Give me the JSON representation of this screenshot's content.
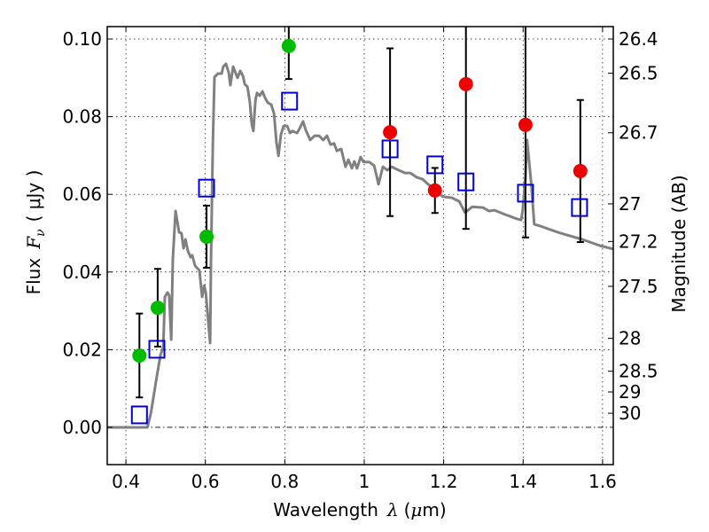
{
  "chart_data": {
    "type": "scatter",
    "title": "",
    "xlabel": "Wavelength",
    "xlabel_symbol": "λ",
    "xlabel_unit_open": "(",
    "xlabel_unit_mu": "μ",
    "xlabel_unit_rest": "m)",
    "ylabel": "Flux",
    "ylabel_symbol": "F",
    "ylabel_subscript": "ν",
    "ylabel_unit": "( μJy )",
    "ylabel_right": "Magnitude (AB)",
    "xlim": [
      0.353,
      1.627
    ],
    "ylim": [
      -0.0096,
      0.1032
    ],
    "grid": true,
    "legend": "none",
    "x_ticks": [
      {
        "value": 0.4,
        "label": "0.4"
      },
      {
        "value": 0.6,
        "label": "0.6"
      },
      {
        "value": 0.8,
        "label": "0.8"
      },
      {
        "value": 1.0,
        "label": "1"
      },
      {
        "value": 1.2,
        "label": "1.2"
      },
      {
        "value": 1.4,
        "label": "1.4"
      },
      {
        "value": 1.6,
        "label": "1.6"
      }
    ],
    "y_ticks": [
      {
        "value": 0.0,
        "label": "0.00"
      },
      {
        "value": 0.02,
        "label": "0.02"
      },
      {
        "value": 0.04,
        "label": "0.04"
      },
      {
        "value": 0.06,
        "label": "0.06"
      },
      {
        "value": 0.08,
        "label": "0.08"
      },
      {
        "value": 0.1,
        "label": "0.10"
      }
    ],
    "mag_ticks": [
      {
        "mag": 26.4,
        "label": "26.4"
      },
      {
        "mag": 26.5,
        "label": "26.5"
      },
      {
        "mag": 26.7,
        "label": "26.7"
      },
      {
        "mag": 27.0,
        "label": "27"
      },
      {
        "mag": 27.2,
        "label": "27.2"
      },
      {
        "mag": 27.5,
        "label": "27.5"
      },
      {
        "mag": 28.0,
        "label": "28"
      },
      {
        "mag": 28.5,
        "label": "28.5"
      },
      {
        "mag": 29.0,
        "label": "29"
      },
      {
        "mag": 30.0,
        "label": "30"
      }
    ],
    "mag_zero_point": 23.9,
    "colors": {
      "spectrum": "#808080",
      "optical_points": "#00bb00",
      "nir_points": "#ee0000",
      "model_squares": "#0000dd",
      "errorbars": "#000000"
    },
    "series": [
      {
        "name": "spectrum",
        "kind": "line",
        "points": [
          [
            0.353,
            0
          ],
          [
            0.454,
            0
          ],
          [
            0.463,
            0.0037
          ],
          [
            0.476,
            0.0119
          ],
          [
            0.487,
            0.0187
          ],
          [
            0.494,
            0.0205
          ],
          [
            0.498,
            0.0336
          ],
          [
            0.505,
            0.0347
          ],
          [
            0.509,
            0.034
          ],
          [
            0.514,
            0.0226
          ],
          [
            0.518,
            0.0432
          ],
          [
            0.525,
            0.0557
          ],
          [
            0.534,
            0.0502
          ],
          [
            0.54,
            0.05
          ],
          [
            0.545,
            0.0461
          ],
          [
            0.55,
            0.0484
          ],
          [
            0.556,
            0.0454
          ],
          [
            0.563,
            0.0438
          ],
          [
            0.567,
            0.0443
          ],
          [
            0.574,
            0.0416
          ],
          [
            0.585,
            0.0404
          ],
          [
            0.592,
            0.0336
          ],
          [
            0.597,
            0.0365
          ],
          [
            0.601,
            0.0347
          ],
          [
            0.612,
            0.0217
          ],
          [
            0.614,
            0.0416
          ],
          [
            0.619,
            0.0735
          ],
          [
            0.623,
            0.0902
          ],
          [
            0.632,
            0.0911
          ],
          [
            0.641,
            0.0911
          ],
          [
            0.645,
            0.0929
          ],
          [
            0.652,
            0.0936
          ],
          [
            0.659,
            0.0913
          ],
          [
            0.663,
            0.0881
          ],
          [
            0.67,
            0.0929
          ],
          [
            0.674,
            0.0918
          ],
          [
            0.681,
            0.09
          ],
          [
            0.688,
            0.0918
          ],
          [
            0.695,
            0.0904
          ],
          [
            0.699,
            0.0884
          ],
          [
            0.706,
            0.0877
          ],
          [
            0.712,
            0.0838
          ],
          [
            0.717,
            0.0781
          ],
          [
            0.721,
            0.0763
          ],
          [
            0.726,
            0.0842
          ],
          [
            0.73,
            0.0861
          ],
          [
            0.737,
            0.0854
          ],
          [
            0.744,
            0.0865
          ],
          [
            0.75,
            0.0849
          ],
          [
            0.757,
            0.0836
          ],
          [
            0.766,
            0.0831
          ],
          [
            0.773,
            0.0808
          ],
          [
            0.779,
            0.0735
          ],
          [
            0.784,
            0.0699
          ],
          [
            0.79,
            0.0753
          ],
          [
            0.797,
            0.0776
          ],
          [
            0.806,
            0.0776
          ],
          [
            0.813,
            0.0758
          ],
          [
            0.819,
            0.0763
          ],
          [
            0.831,
            0.0758
          ],
          [
            0.837,
            0.0769
          ],
          [
            0.846,
            0.0788
          ],
          [
            0.853,
            0.0765
          ],
          [
            0.864,
            0.074
          ],
          [
            0.875,
            0.0751
          ],
          [
            0.886,
            0.0751
          ],
          [
            0.897,
            0.074
          ],
          [
            0.906,
            0.0751
          ],
          [
            0.915,
            0.0728
          ],
          [
            0.924,
            0.0731
          ],
          [
            0.931,
            0.0712
          ],
          [
            0.942,
            0.0717
          ],
          [
            0.953,
            0.0671
          ],
          [
            0.96,
            0.0689
          ],
          [
            0.969,
            0.0667
          ],
          [
            0.975,
            0.0685
          ],
          [
            0.982,
            0.0667
          ],
          [
            0.991,
            0.0696
          ],
          [
            0.998,
            0.0683
          ],
          [
            1.013,
            0.0683
          ],
          [
            1.025,
            0.0674
          ],
          [
            1.036,
            0.0626
          ],
          [
            1.047,
            0.0671
          ],
          [
            1.058,
            0.0662
          ],
          [
            1.069,
            0.0671
          ],
          [
            1.087,
            0.0662
          ],
          [
            1.103,
            0.0655
          ],
          [
            1.116,
            0.0655
          ],
          [
            1.132,
            0.0644
          ],
          [
            1.147,
            0.0639
          ],
          [
            1.161,
            0.0626
          ],
          [
            1.176,
            0.0614
          ],
          [
            1.198,
            0.0594
          ],
          [
            1.221,
            0.0591
          ],
          [
            1.239,
            0.0582
          ],
          [
            1.254,
            0.0553
          ],
          [
            1.272,
            0.0568
          ],
          [
            1.299,
            0.0566
          ],
          [
            1.314,
            0.0557
          ],
          [
            1.328,
            0.0559
          ],
          [
            1.355,
            0.0548
          ],
          [
            1.384,
            0.0537
          ],
          [
            1.395,
            0.0534
          ],
          [
            1.399,
            0.0559
          ],
          [
            1.406,
            0.0644
          ],
          [
            1.41,
            0.074
          ],
          [
            1.421,
            0.0621
          ],
          [
            1.428,
            0.0523
          ],
          [
            1.444,
            0.0518
          ],
          [
            1.488,
            0.0502
          ],
          [
            1.549,
            0.0484
          ],
          [
            1.593,
            0.0468
          ],
          [
            1.627,
            0.0459
          ]
        ]
      },
      {
        "name": "optical photometry",
        "kind": "errorbar",
        "marker": "circle",
        "color_key": "optical_points",
        "x": [
          0.434,
          0.48,
          0.603,
          0.81
        ],
        "y": [
          0.0185,
          0.0308,
          0.0491,
          0.0982
        ],
        "yerr": [
          0.0108,
          0.01,
          0.008,
          0.0085
        ]
      },
      {
        "name": "near-IR photometry",
        "kind": "errorbar",
        "marker": "circle",
        "color_key": "nir_points",
        "x": [
          1.065,
          1.178,
          1.256,
          1.406,
          1.544
        ],
        "y": [
          0.076,
          0.061,
          0.0884,
          0.0779,
          0.066
        ],
        "yerr": [
          0.0216,
          0.0058,
          0.0373,
          0.029,
          0.0183
        ]
      },
      {
        "name": "model synthetic photometry",
        "kind": "scatter",
        "marker": "open-square",
        "color_key": "model_squares",
        "x": [
          0.434,
          0.478,
          0.603,
          0.812,
          1.065,
          1.178,
          1.256,
          1.406,
          1.542
        ],
        "y": [
          0.0032,
          0.0201,
          0.0616,
          0.084,
          0.0717,
          0.0676,
          0.0632,
          0.0603,
          0.0566
        ]
      }
    ]
  }
}
